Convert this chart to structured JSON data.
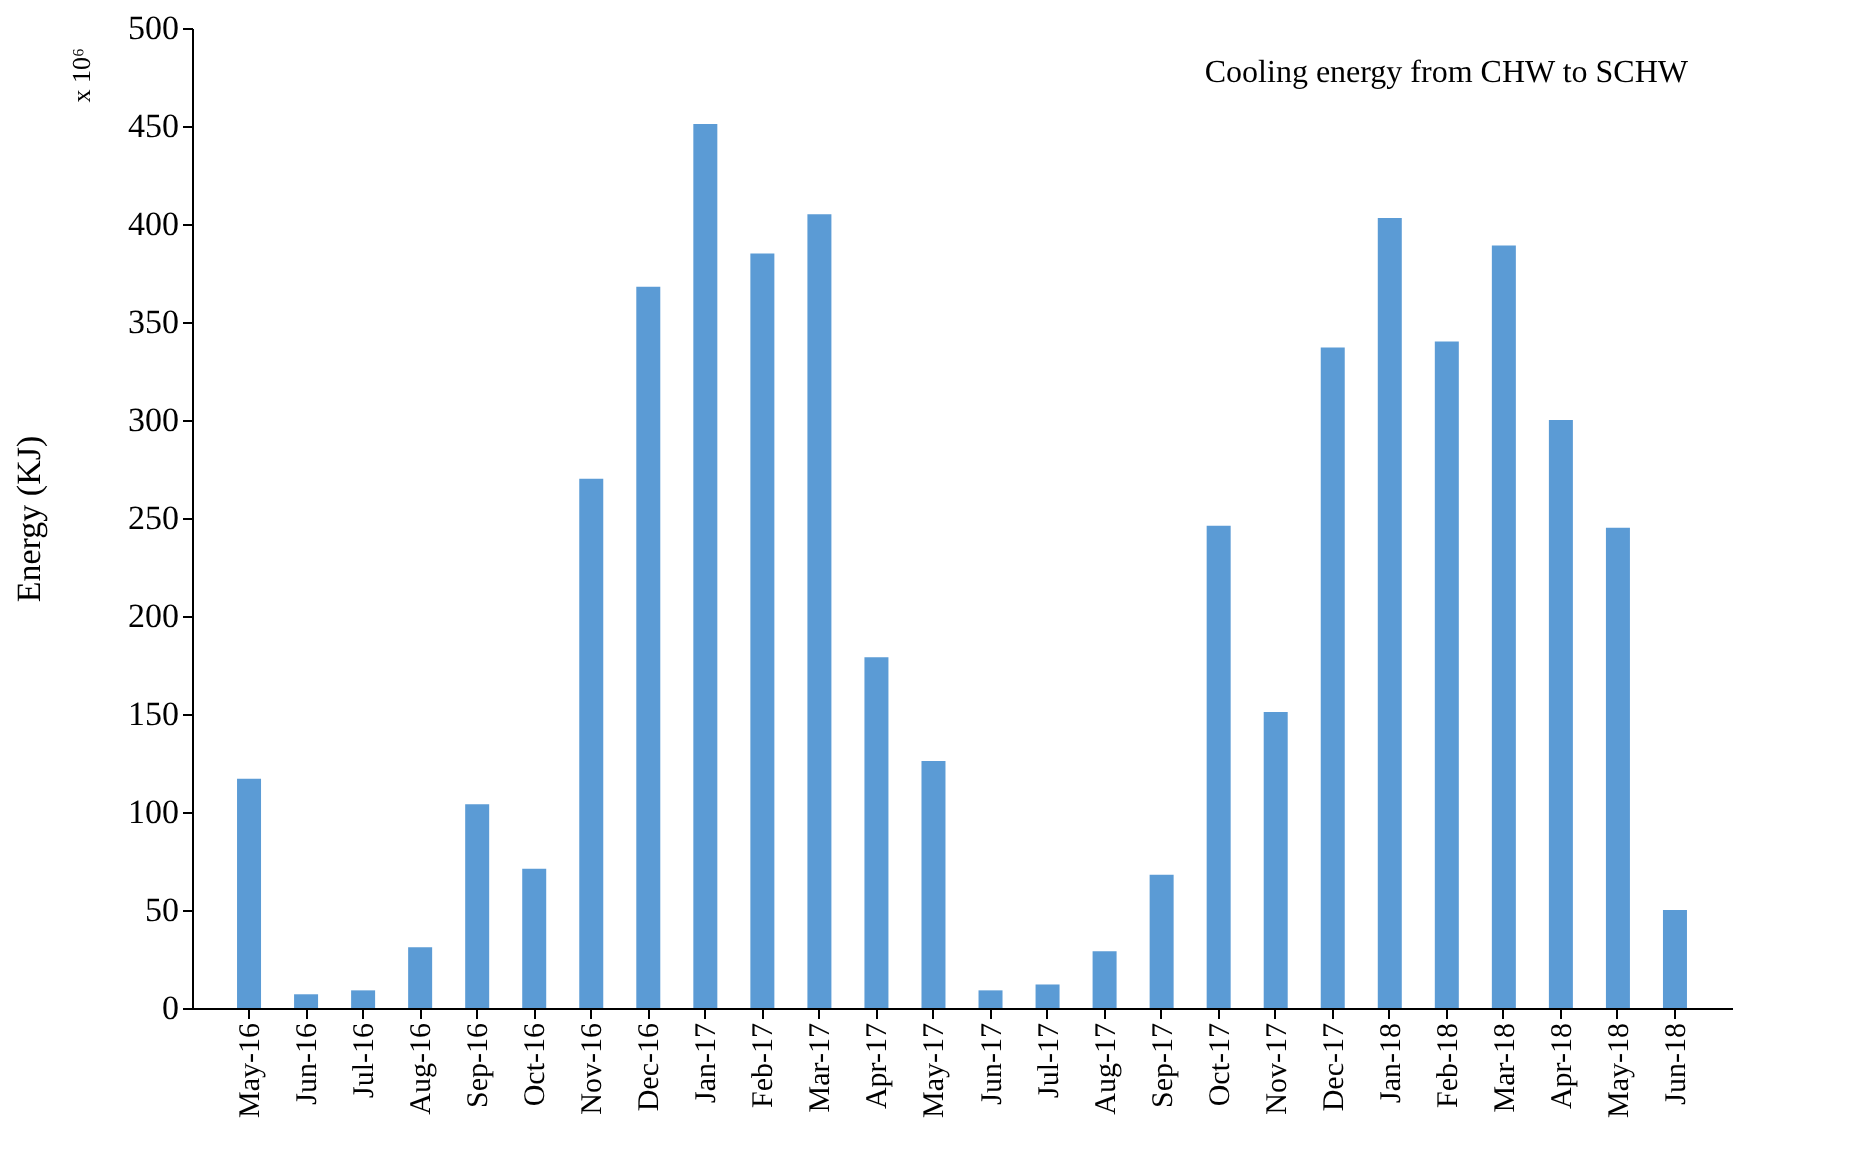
{
  "chart_data": {
    "type": "bar",
    "categories": [
      "May-16",
      "Jun-16",
      "Jul-16",
      "Aug-16",
      "Sep-16",
      "Oct-16",
      "Nov-16",
      "Dec-16",
      "Jan-17",
      "Feb-17",
      "Mar-17",
      "Apr-17",
      "May-17",
      "Jun-17",
      "Jul-17",
      "Aug-17",
      "Sep-17",
      "Oct-17",
      "Nov-17",
      "Dec-17",
      "Jan-18",
      "Feb-18",
      "Mar-18",
      "Apr-18",
      "May-18",
      "Jun-18"
    ],
    "values": [
      117,
      7,
      9,
      31,
      104,
      71,
      270,
      368,
      451,
      385,
      405,
      179,
      126,
      9,
      12,
      29,
      68,
      246,
      151,
      337,
      403,
      340,
      389,
      300,
      245,
      50
    ],
    "color": "#5b9bd5",
    "ylabel": "Energy (KJ)",
    "ylim": [
      0,
      500
    ],
    "yticks": [
      0,
      50,
      100,
      150,
      200,
      250,
      300,
      350,
      400,
      450,
      500
    ],
    "grid": false,
    "annotations": [
      "x 10⁶",
      "Cooling energy from CHW to SCHW"
    ]
  }
}
